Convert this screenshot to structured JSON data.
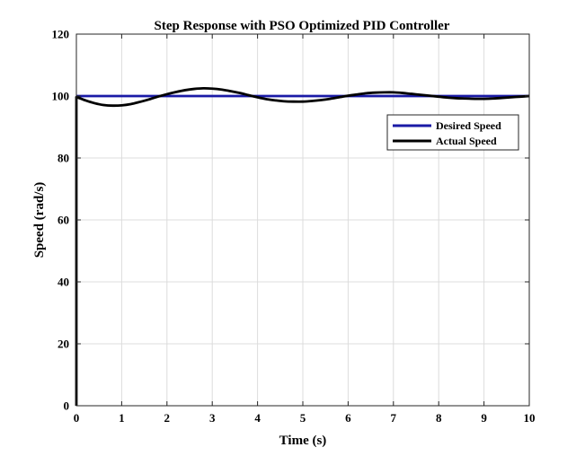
{
  "chart_data": {
    "type": "line",
    "title": "Step Response with PSO Optimized PID Controller",
    "xlabel": "Time (s)",
    "ylabel": "Speed (rad/s)",
    "xlim": [
      0,
      10
    ],
    "ylim": [
      0,
      120
    ],
    "xticks": [
      0,
      1,
      2,
      3,
      4,
      5,
      6,
      7,
      8,
      9,
      10
    ],
    "yticks": [
      0,
      20,
      40,
      60,
      80,
      100,
      120
    ],
    "xtick_labels": [
      "0",
      "1",
      "2",
      "3",
      "4",
      "5",
      "6",
      "7",
      "8",
      "9",
      "10"
    ],
    "ytick_labels": [
      "0",
      "20",
      "40",
      "60",
      "80",
      "100",
      "120"
    ],
    "grid": true,
    "legend_position": "top-right",
    "series": [
      {
        "name": "Desired Speed",
        "color": "#1a1aa6",
        "x": [
          0,
          10
        ],
        "y": [
          100,
          100
        ]
      },
      {
        "name": "Actual Speed",
        "color": "#000000",
        "x": [
          0,
          0,
          0.02,
          0.2,
          0.4,
          0.6,
          0.8,
          1.0,
          1.2,
          1.4,
          1.6,
          1.8,
          2.0,
          2.2,
          2.4,
          2.6,
          2.8,
          3.0,
          3.2,
          3.4,
          3.6,
          3.8,
          4.0,
          4.2,
          4.4,
          4.6,
          4.8,
          5.0,
          5.2,
          5.4,
          5.6,
          5.8,
          6.0,
          6.2,
          6.4,
          6.6,
          6.8,
          7.0,
          7.2,
          7.4,
          7.6,
          7.8,
          8.0,
          8.2,
          8.4,
          8.6,
          8.8,
          9.0,
          9.2,
          9.4,
          9.6,
          9.8,
          10.0
        ],
        "y": [
          0,
          99.5,
          99.6,
          98.6,
          97.7,
          97.1,
          96.9,
          97.0,
          97.4,
          98.1,
          98.9,
          99.8,
          100.6,
          101.3,
          101.9,
          102.3,
          102.5,
          102.4,
          102.1,
          101.6,
          101.0,
          100.3,
          99.6,
          99.0,
          98.6,
          98.3,
          98.2,
          98.2,
          98.4,
          98.7,
          99.1,
          99.6,
          100.1,
          100.5,
          100.9,
          101.1,
          101.2,
          101.2,
          101.0,
          100.7,
          100.4,
          100.1,
          99.8,
          99.5,
          99.3,
          99.2,
          99.1,
          99.1,
          99.2,
          99.4,
          99.6,
          99.8,
          100.0
        ]
      }
    ]
  }
}
